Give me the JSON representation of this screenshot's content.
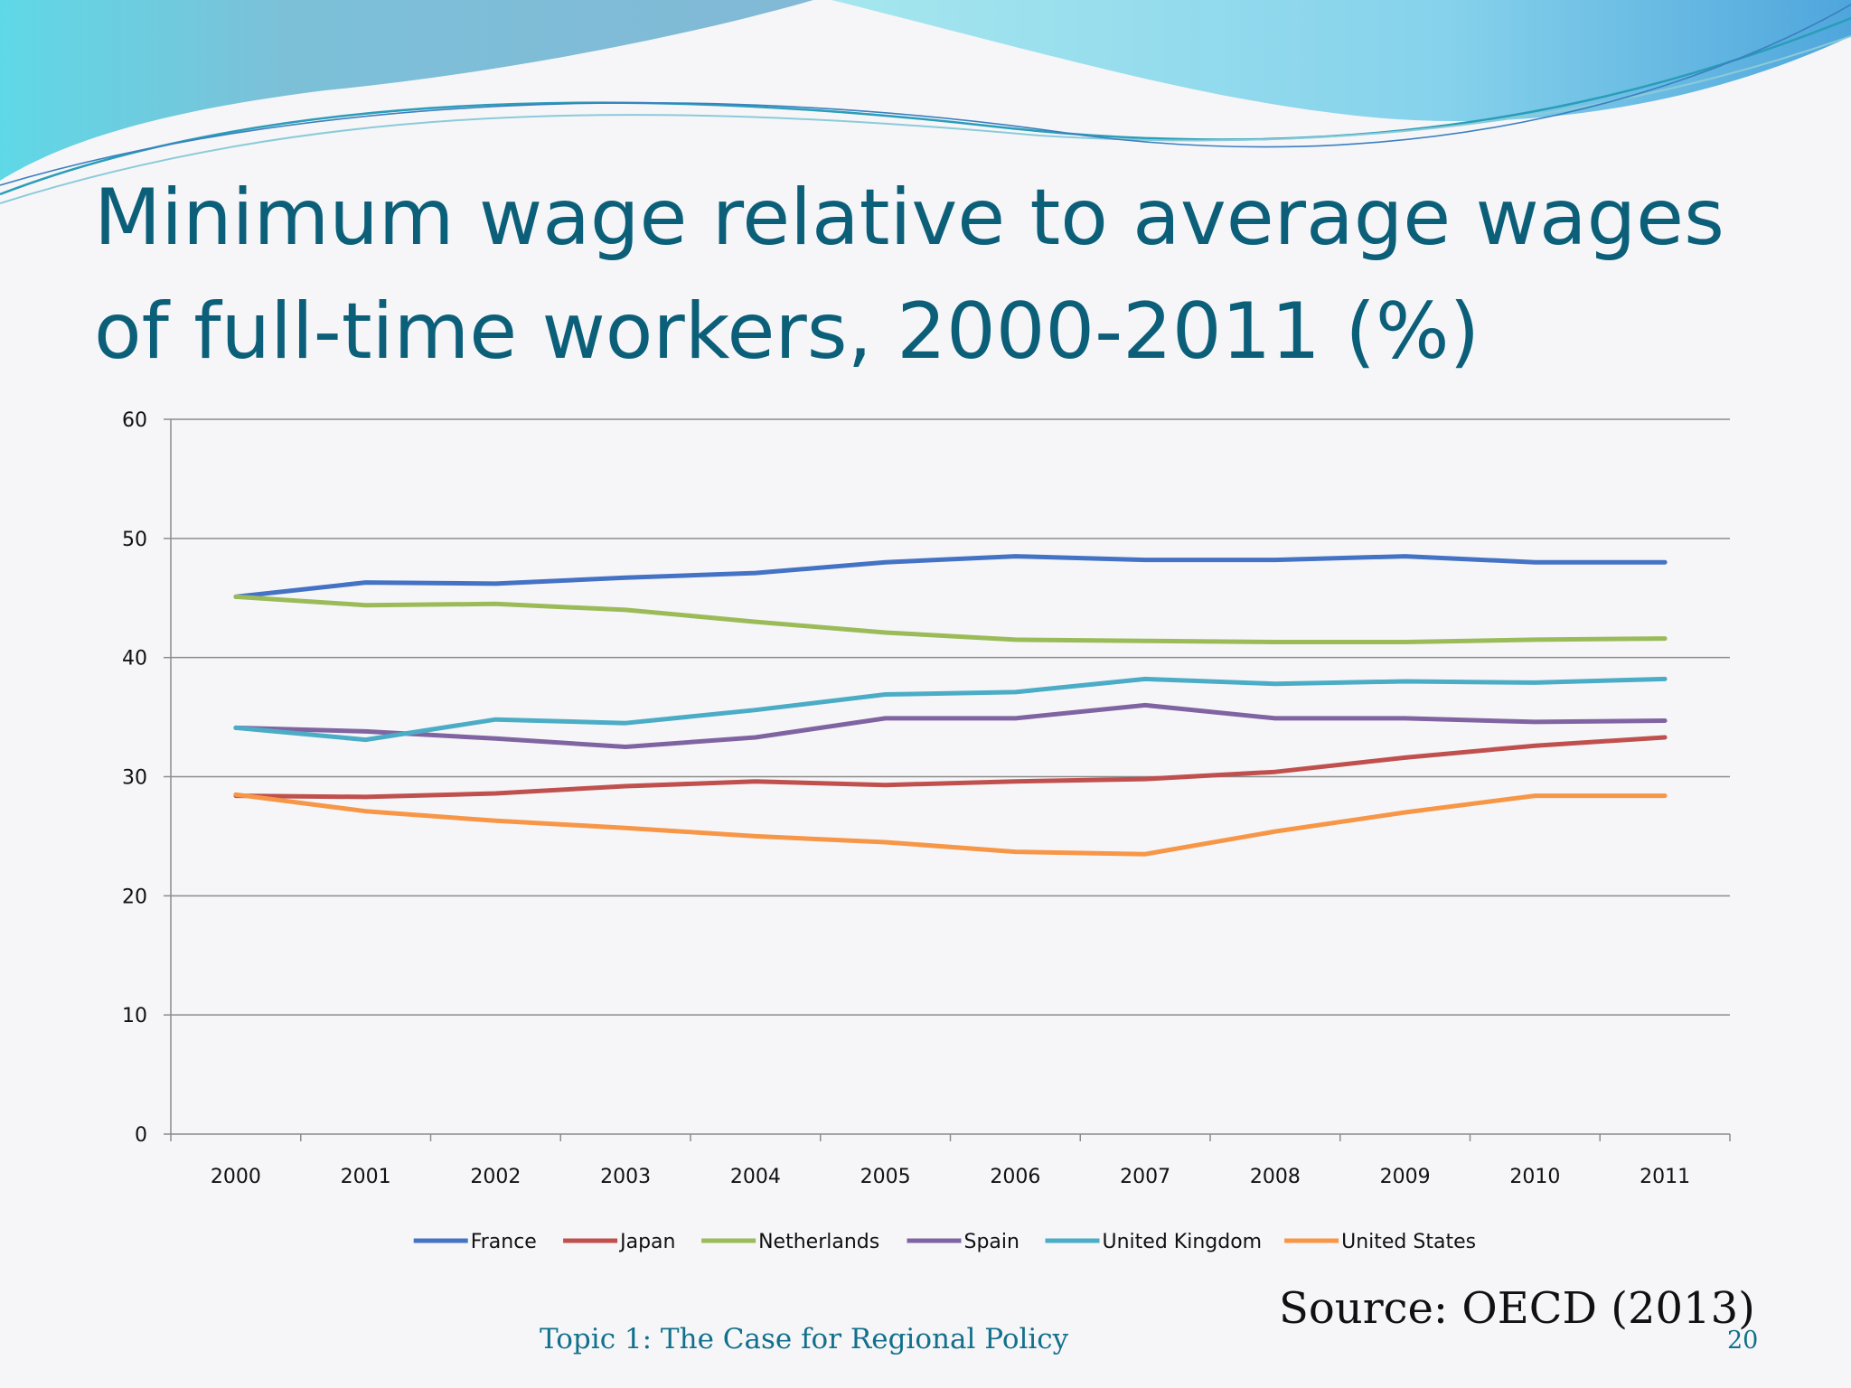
{
  "slide": {
    "title": "Minimum wage relative to average wages of full-time workers, 2000-2011 (%)",
    "source": "Source: OECD (2013)",
    "footer": "Topic 1: The Case for Regional Policy",
    "page_number": "20"
  },
  "chart_data": {
    "type": "line",
    "title": "",
    "xlabel": "",
    "ylabel": "",
    "ylim": [
      0,
      60
    ],
    "yticks": [
      0,
      10,
      20,
      30,
      40,
      50,
      60
    ],
    "grid": true,
    "legend_position": "bottom",
    "categories": [
      "2000",
      "2001",
      "2002",
      "2003",
      "2004",
      "2005",
      "2006",
      "2007",
      "2008",
      "2009",
      "2010",
      "2011"
    ],
    "series": [
      {
        "name": "France",
        "color": "#4472c4",
        "values": [
          45.1,
          46.3,
          46.2,
          46.7,
          47.1,
          48.0,
          48.5,
          48.2,
          48.2,
          48.5,
          48.0,
          48.0
        ]
      },
      {
        "name": "Japan",
        "color": "#c0504d",
        "values": [
          28.4,
          28.3,
          28.6,
          29.2,
          29.6,
          29.3,
          29.6,
          29.8,
          30.4,
          31.6,
          32.6,
          33.3
        ]
      },
      {
        "name": "Netherlands",
        "color": "#9bbb59",
        "values": [
          45.1,
          44.4,
          44.5,
          44.0,
          43.0,
          42.1,
          41.5,
          41.4,
          41.3,
          41.3,
          41.5,
          41.6
        ]
      },
      {
        "name": "Spain",
        "color": "#8064a2",
        "values": [
          34.1,
          33.8,
          33.2,
          32.5,
          33.3,
          34.9,
          34.9,
          36.0,
          34.9,
          34.9,
          34.6,
          34.7
        ]
      },
      {
        "name": "United Kingdom",
        "color": "#4bacc6",
        "values": [
          34.1,
          33.1,
          34.8,
          34.5,
          35.6,
          36.9,
          37.1,
          38.2,
          37.8,
          38.0,
          37.9,
          38.2
        ]
      },
      {
        "name": "United States",
        "color": "#f79646",
        "values": [
          28.5,
          27.1,
          26.3,
          25.7,
          25.0,
          24.5,
          23.7,
          23.5,
          25.4,
          27.0,
          28.4,
          28.4
        ]
      }
    ]
  }
}
